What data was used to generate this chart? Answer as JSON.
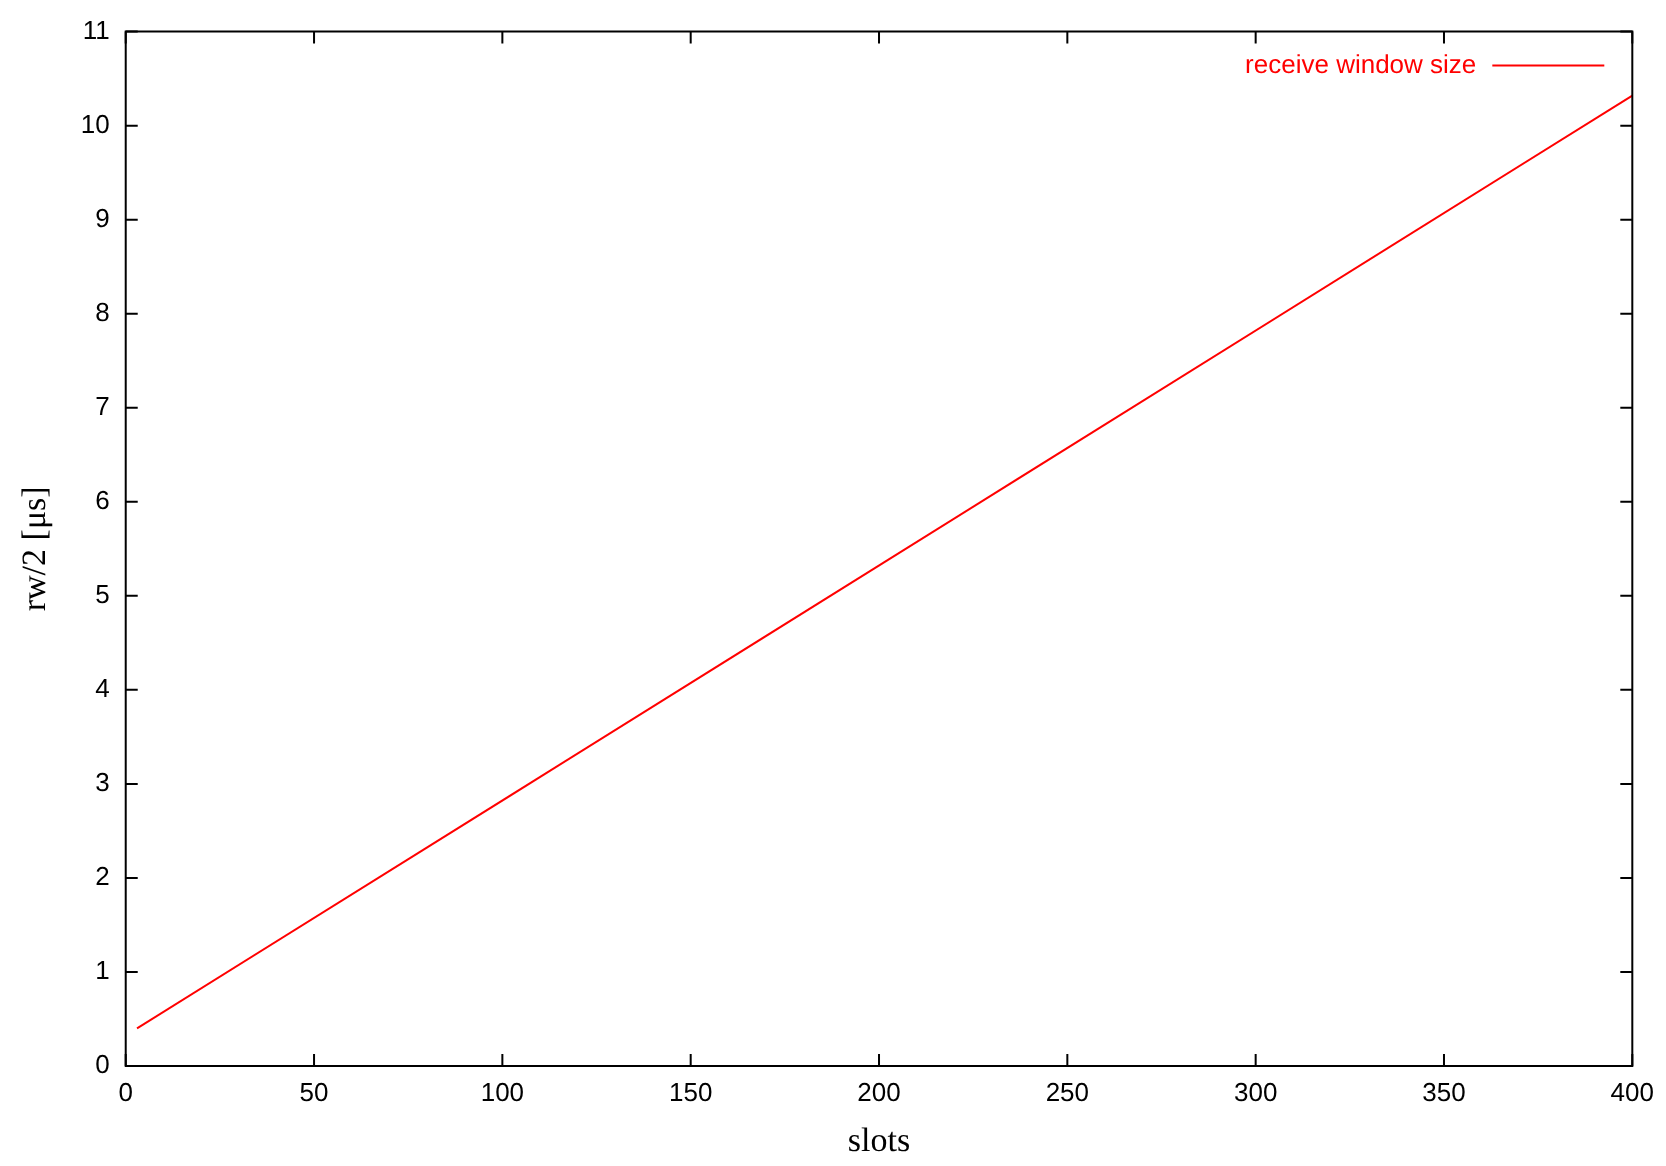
{
  "chart_data": {
    "type": "line",
    "xlabel": "slots",
    "ylabel": "rw/2 [μs]",
    "x": [
      3,
      400
    ],
    "series": [
      {
        "name": "receive window size",
        "color": "#ff0000",
        "values": [
          0.4,
          10.32
        ]
      }
    ],
    "xlim": [
      0,
      400
    ],
    "xticks": [
      0,
      50,
      100,
      150,
      200,
      250,
      300,
      350,
      400
    ],
    "ylim": [
      0,
      11
    ],
    "yticks": [
      0,
      1,
      2,
      3,
      4,
      5,
      6,
      7,
      8,
      9,
      10,
      11
    ],
    "grid": false,
    "legend": "top right",
    "marker": "none",
    "line_style": "solid"
  }
}
